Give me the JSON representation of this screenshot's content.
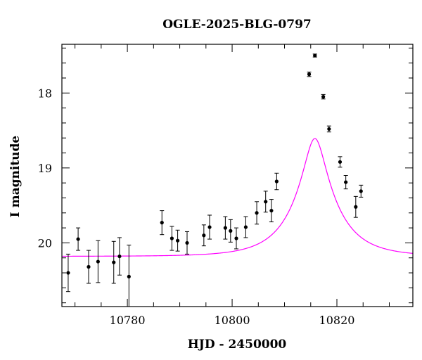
{
  "chart_data": {
    "type": "scatter",
    "title": "OGLE-2025-BLG-0797",
    "xlabel": "HJD - 2450000",
    "ylabel": "I magnitude",
    "xlim": [
      10767.5,
      10834.5
    ],
    "ylim": [
      20.85,
      17.35
    ],
    "y_inverted": true,
    "x_major_ticks": [
      10780,
      10800,
      10820
    ],
    "x_tick_labels": [
      "10780",
      "10800",
      "10820"
    ],
    "y_major_ticks": [
      18,
      19,
      20
    ],
    "y_tick_labels": [
      "18",
      "19",
      "20"
    ],
    "grid": false,
    "series": [
      {
        "kind": "points_with_errorbars",
        "color": "#000000",
        "points": [
          {
            "x": 10768.7,
            "y": 20.4,
            "err": 0.25
          },
          {
            "x": 10770.6,
            "y": 19.95,
            "err": 0.15
          },
          {
            "x": 10772.6,
            "y": 20.32,
            "err": 0.22
          },
          {
            "x": 10774.4,
            "y": 20.25,
            "err": 0.28
          },
          {
            "x": 10777.4,
            "y": 20.26,
            "err": 0.28
          },
          {
            "x": 10778.5,
            "y": 20.18,
            "err": 0.25
          },
          {
            "x": 10780.3,
            "y": 20.45,
            "err": 0.42
          },
          {
            "x": 10786.6,
            "y": 19.73,
            "err": 0.16
          },
          {
            "x": 10788.5,
            "y": 19.94,
            "err": 0.16
          },
          {
            "x": 10789.6,
            "y": 19.97,
            "err": 0.14
          },
          {
            "x": 10791.4,
            "y": 20.0,
            "err": 0.15
          },
          {
            "x": 10794.6,
            "y": 19.9,
            "err": 0.14
          },
          {
            "x": 10795.7,
            "y": 19.79,
            "err": 0.16
          },
          {
            "x": 10798.7,
            "y": 19.8,
            "err": 0.15
          },
          {
            "x": 10799.7,
            "y": 19.84,
            "err": 0.15
          },
          {
            "x": 10800.8,
            "y": 19.94,
            "err": 0.14
          },
          {
            "x": 10802.6,
            "y": 19.79,
            "err": 0.14
          },
          {
            "x": 10804.7,
            "y": 19.6,
            "err": 0.15
          },
          {
            "x": 10806.4,
            "y": 19.45,
            "err": 0.14
          },
          {
            "x": 10807.5,
            "y": 19.57,
            "err": 0.15
          },
          {
            "x": 10808.5,
            "y": 19.18,
            "err": 0.11
          },
          {
            "x": 10814.7,
            "y": 17.75,
            "err": 0.03
          },
          {
            "x": 10815.8,
            "y": 17.5,
            "err": 0.02
          },
          {
            "x": 10817.4,
            "y": 18.05,
            "err": 0.03
          },
          {
            "x": 10818.5,
            "y": 18.48,
            "err": 0.04
          },
          {
            "x": 10820.6,
            "y": 18.92,
            "err": 0.07
          },
          {
            "x": 10821.7,
            "y": 19.19,
            "err": 0.09
          },
          {
            "x": 10823.6,
            "y": 19.52,
            "err": 0.14
          },
          {
            "x": 10824.6,
            "y": 19.31,
            "err": 0.08
          }
        ]
      },
      {
        "kind": "model_curve",
        "color": "#ff00ff",
        "t0": 10815.8,
        "tE": 8,
        "u0": 0.24,
        "baseline_mag": 20.18
      }
    ]
  }
}
